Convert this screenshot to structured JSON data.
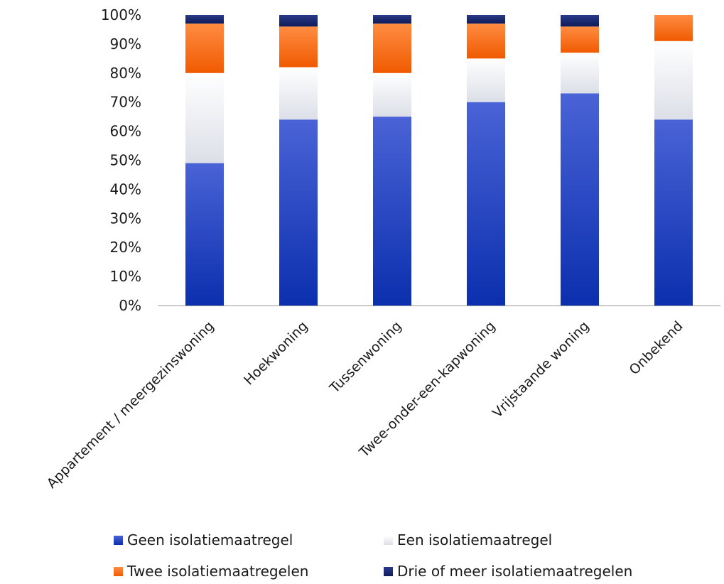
{
  "chart_data": {
    "type": "bar",
    "stacked": true,
    "categories": [
      "Appartement / meergezinswoning",
      "Hoekwoning",
      "Tussenwoning",
      "Twee-onder-een-kapwoning",
      "Vrijstaande woning",
      "Onbekend"
    ],
    "series": [
      {
        "name": "Geen isolatiemaatregel",
        "values": [
          49,
          64,
          65,
          70,
          73,
          64
        ],
        "color": "#1f3fc4"
      },
      {
        "name": "Een isolatiemaatregel",
        "values": [
          31,
          18,
          15,
          15,
          14,
          27
        ],
        "color": "#e9ebf3"
      },
      {
        "name": "Twee isolatiemaatregelen",
        "values": [
          17,
          14,
          17,
          12,
          9,
          9
        ],
        "color": "#f26b1d"
      },
      {
        "name": "Drie of meer isolatiemaatregelen",
        "values": [
          3,
          4,
          3,
          3,
          4,
          0
        ],
        "color": "#14246b"
      }
    ],
    "y_ticks": [
      "0%",
      "10%",
      "20%",
      "30%",
      "40%",
      "50%",
      "60%",
      "70%",
      "80%",
      "90%",
      "100%"
    ],
    "ylim": [
      0,
      100
    ],
    "legend_position": "bottom",
    "grid": false
  }
}
